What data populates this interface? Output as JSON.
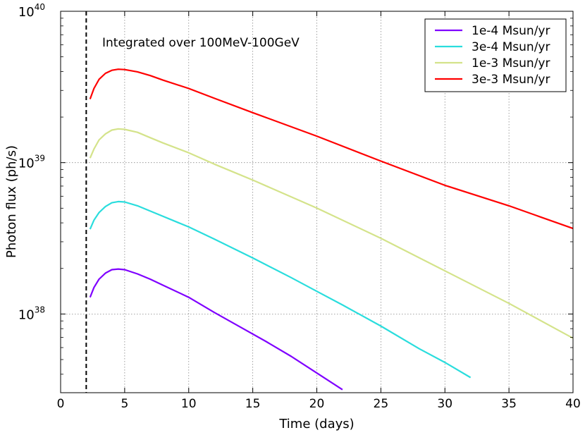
{
  "chart_data": {
    "type": "line",
    "title": "",
    "xlabel": "Time (days)",
    "ylabel": "Photon flux (ph/s)",
    "xlim": [
      0,
      40
    ],
    "ylim_log10": [
      37.48,
      40
    ],
    "y_scale": "log",
    "grid": true,
    "x_ticks": [
      0,
      5,
      10,
      15,
      20,
      25,
      30,
      35,
      40
    ],
    "y_ticks": [
      {
        "base": "10",
        "exp": "38",
        "log10": 38
      },
      {
        "base": "10",
        "exp": "39",
        "log10": 39
      },
      {
        "base": "10",
        "exp": "40",
        "log10": 40
      }
    ],
    "annotation": "Integrated over 100MeV-100GeV",
    "vline": {
      "x": 2.0,
      "style": "dashed",
      "color": "#000000"
    },
    "legend_position": "top-right",
    "series": [
      {
        "name": "1e-4 Msun/yr",
        "color": "#7f00ff",
        "x": [
          2.3,
          2.6,
          3.0,
          3.5,
          4.0,
          4.5,
          5.0,
          6.0,
          7.0,
          8.0,
          10.0,
          12.0,
          14.0,
          16.0,
          18.0,
          20.0,
          22.0
        ],
        "log10_flux": [
          38.11,
          38.175,
          38.23,
          38.27,
          38.293,
          38.297,
          38.293,
          38.265,
          38.23,
          38.19,
          38.11,
          38.01,
          37.915,
          37.82,
          37.72,
          37.61,
          37.5
        ]
      },
      {
        "name": "3e-4 Msun/yr",
        "color": "#2adddd",
        "x": [
          2.3,
          2.6,
          3.0,
          3.5,
          4.0,
          4.5,
          5.0,
          6.0,
          7.0,
          8.0,
          10.0,
          12.0,
          15.0,
          18.0,
          20.0,
          22.0,
          25.0,
          28.0,
          30.0,
          32.0
        ],
        "log10_flux": [
          38.56,
          38.62,
          38.67,
          38.71,
          38.735,
          38.743,
          38.74,
          38.715,
          38.68,
          38.645,
          38.575,
          38.495,
          38.37,
          38.24,
          38.15,
          38.06,
          37.92,
          37.77,
          37.68,
          37.58
        ]
      },
      {
        "name": "1e-3 Msun/yr",
        "color": "#d4e38a",
        "x": [
          2.3,
          2.6,
          3.0,
          3.5,
          4.0,
          4.5,
          5.0,
          6.0,
          7.0,
          8.0,
          10.0,
          12.0,
          15.0,
          20.0,
          25.0,
          30.0,
          35.0,
          40.0
        ],
        "log10_flux": [
          39.03,
          39.09,
          39.15,
          39.19,
          39.215,
          39.223,
          39.22,
          39.2,
          39.165,
          39.13,
          39.065,
          38.99,
          38.885,
          38.7,
          38.5,
          38.285,
          38.07,
          37.84
        ]
      },
      {
        "name": "3e-3 Msun/yr",
        "color": "#ff0000",
        "x": [
          2.3,
          2.6,
          3.0,
          3.5,
          4.0,
          4.5,
          5.0,
          6.0,
          7.0,
          8.0,
          10.0,
          12.0,
          15.0,
          20.0,
          25.0,
          30.0,
          35.0,
          40.0
        ],
        "log10_flux": [
          39.42,
          39.49,
          39.55,
          39.59,
          39.61,
          39.617,
          39.615,
          39.6,
          39.575,
          39.545,
          39.49,
          39.425,
          39.33,
          39.175,
          39.01,
          38.85,
          38.715,
          38.565
        ]
      }
    ]
  }
}
